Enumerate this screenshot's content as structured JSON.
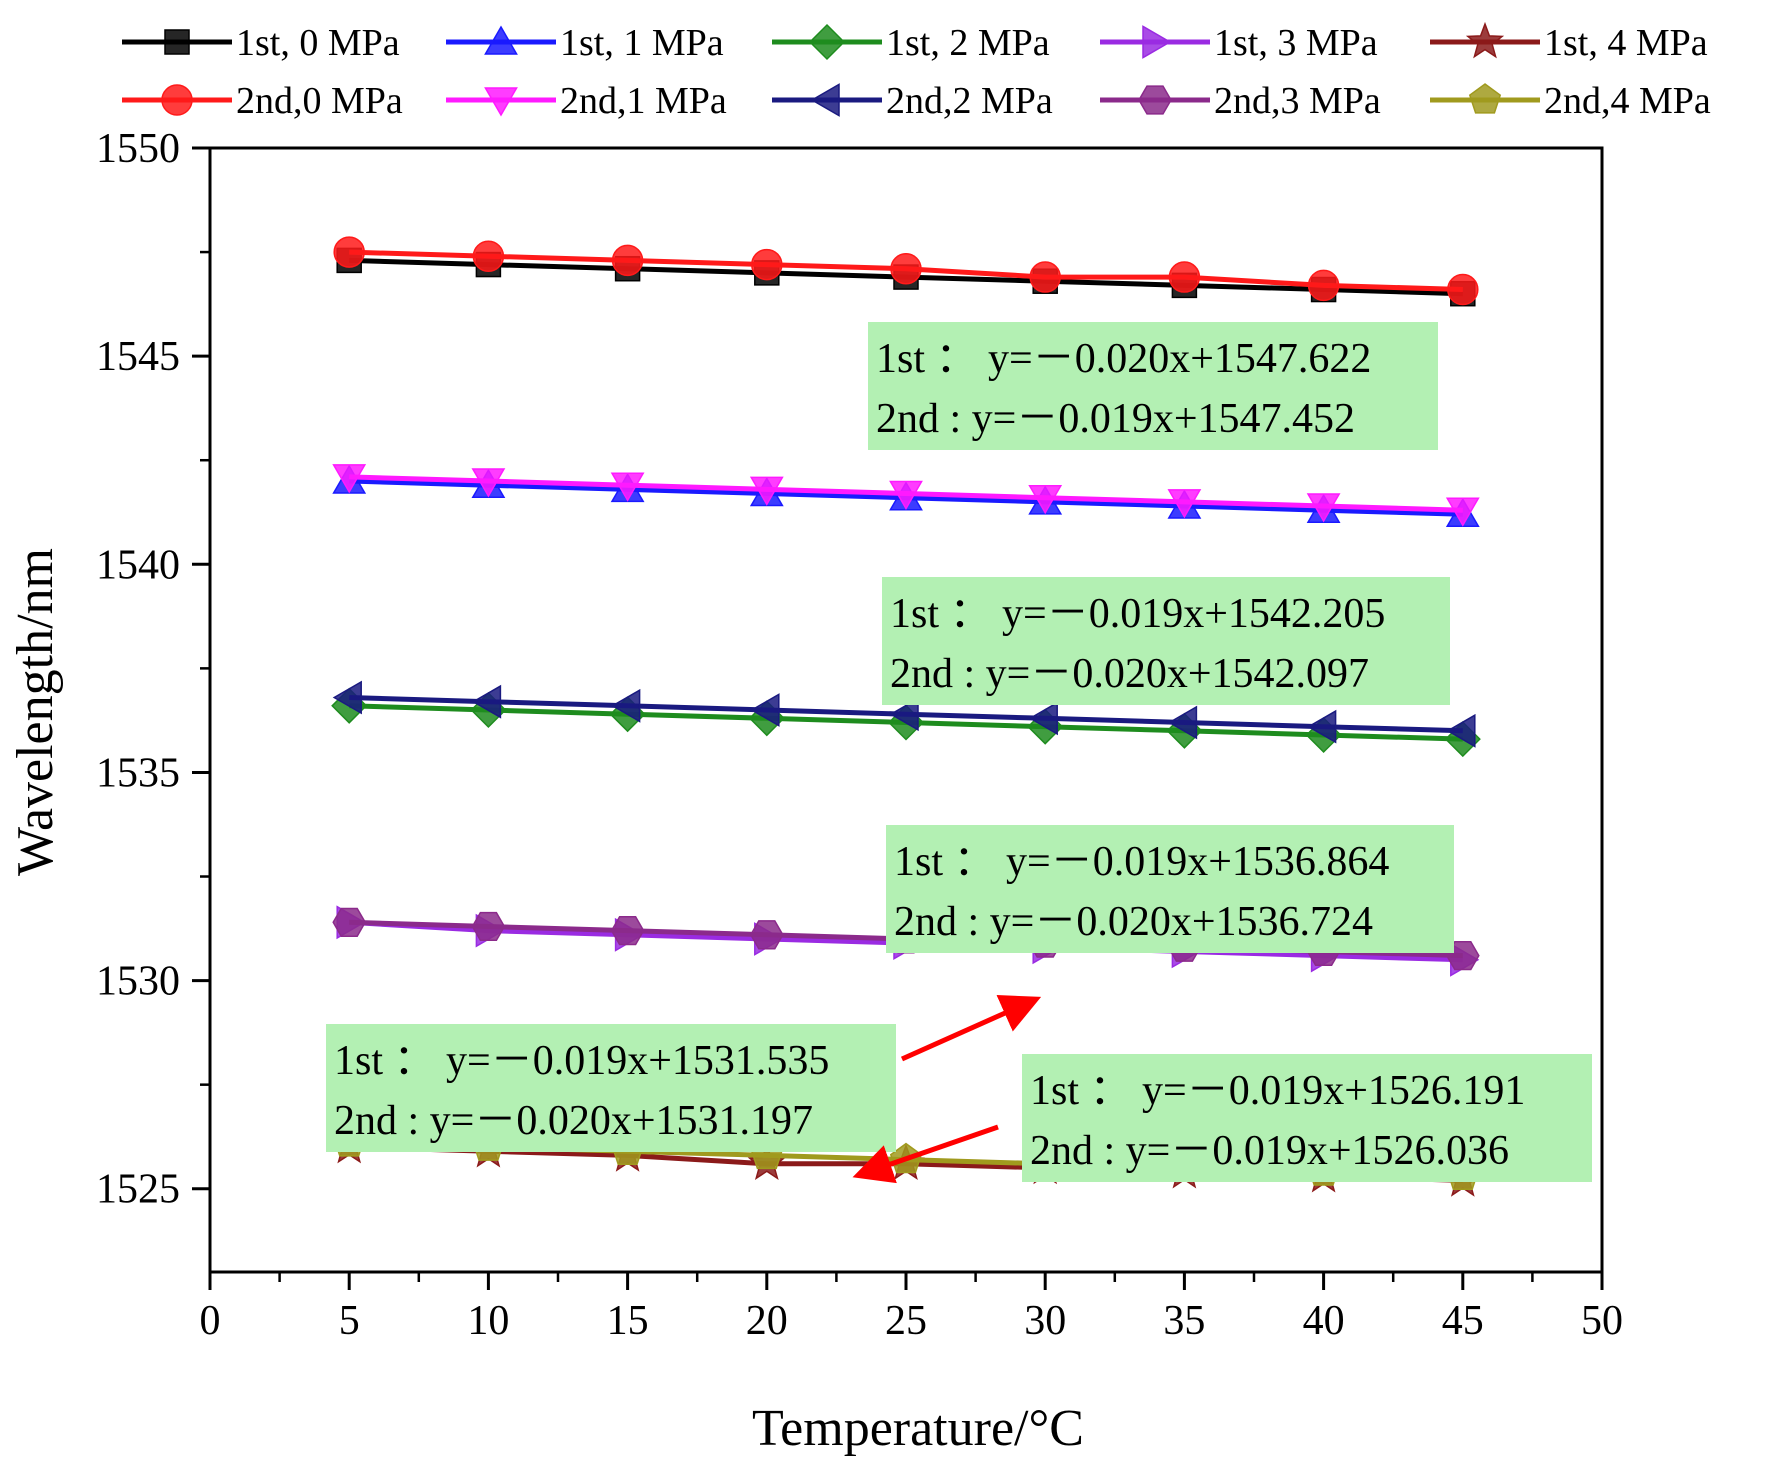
{
  "chart_data": {
    "type": "line",
    "title": "",
    "xlabel": "Temperature/°C",
    "ylabel": "Wavelength/nm",
    "xlim": [
      0,
      50
    ],
    "ylim": [
      1523,
      1550
    ],
    "xticks": [
      0,
      5,
      10,
      15,
      20,
      25,
      30,
      35,
      40,
      45,
      50
    ],
    "yticks": [
      1525,
      1530,
      1535,
      1540,
      1545,
      1550
    ],
    "grid": false,
    "legend_position": "top",
    "x": [
      5,
      10,
      15,
      20,
      25,
      30,
      35,
      40,
      45
    ],
    "series": [
      {
        "name": "1st, 0 MPa",
        "color": "#000000",
        "marker": "square",
        "values": [
          1547.3,
          1547.2,
          1547.1,
          1547.0,
          1546.9,
          1546.8,
          1546.7,
          1546.6,
          1546.5
        ]
      },
      {
        "name": "1st, 1 MPa",
        "color": "#1a1aff",
        "marker": "triangle-up",
        "values": [
          1542.0,
          1541.9,
          1541.8,
          1541.7,
          1541.6,
          1541.5,
          1541.4,
          1541.3,
          1541.2
        ]
      },
      {
        "name": "1st, 2 MPa",
        "color": "#1e8c1e",
        "marker": "diamond",
        "values": [
          1536.6,
          1536.5,
          1536.4,
          1536.3,
          1536.2,
          1536.1,
          1536.0,
          1535.9,
          1535.8
        ]
      },
      {
        "name": "1st, 3 MPa",
        "color": "#9a2be2",
        "marker": "triangle-right",
        "values": [
          1531.4,
          1531.2,
          1531.1,
          1531.0,
          1530.9,
          1530.8,
          1530.7,
          1530.6,
          1530.5
        ]
      },
      {
        "name": "1st, 4 MPa",
        "color": "#8b1a1a",
        "marker": "star",
        "values": [
          1526.0,
          1525.9,
          1525.8,
          1525.6,
          1525.6,
          1525.5,
          1525.4,
          1525.3,
          1525.2
        ]
      },
      {
        "name": "2nd,0 MPa",
        "color": "#ff1a1a",
        "marker": "circle",
        "values": [
          1547.5,
          1547.4,
          1547.3,
          1547.2,
          1547.1,
          1546.9,
          1546.9,
          1546.7,
          1546.6
        ]
      },
      {
        "name": "2nd,1 MPa",
        "color": "#ff1aff",
        "marker": "triangle-down",
        "values": [
          1542.1,
          1542.0,
          1541.9,
          1541.8,
          1541.7,
          1541.6,
          1541.5,
          1541.4,
          1541.3
        ]
      },
      {
        "name": "2nd,2 MPa",
        "color": "#1a1a80",
        "marker": "triangle-left",
        "values": [
          1536.8,
          1536.7,
          1536.6,
          1536.5,
          1536.4,
          1536.3,
          1536.2,
          1536.1,
          1536.0
        ]
      },
      {
        "name": "2nd,3 MPa",
        "color": "#8b2a8b",
        "marker": "hexagon",
        "values": [
          1531.4,
          1531.3,
          1531.2,
          1531.1,
          1531.0,
          1530.9,
          1530.8,
          1530.7,
          1530.6
        ]
      },
      {
        "name": "2nd,4 MPa",
        "color": "#a09a1e",
        "marker": "pentagon",
        "values": [
          1526.1,
          1526.0,
          1525.9,
          1525.8,
          1525.7,
          1525.6,
          1525.5,
          1525.4,
          1525.3
        ]
      }
    ],
    "annotations": [
      {
        "line1": "1st ： y=－0.020x+1547.622",
        "line2": "2nd : y=－0.019x+1547.452",
        "arrow": false
      },
      {
        "line1": "1st ： y=－0.019x+1542.205",
        "line2": "2nd : y=－0.020x+1542.097",
        "arrow": false
      },
      {
        "line1": "1st ： y=－0.019x+1536.864",
        "line2": "2nd : y=－0.020x+1536.724",
        "arrow": false
      },
      {
        "line1": "1st ： y=－0.019x+1531.535",
        "line2": "2nd : y=－0.020x+1531.197",
        "arrow": true
      },
      {
        "line1": "1st ： y=－0.019x+1526.191",
        "line2": "2nd : y=－0.019x+1526.036",
        "arrow": true
      }
    ],
    "annotation_bg": "#b3f0b3",
    "arrow_color": "#ff0000"
  }
}
